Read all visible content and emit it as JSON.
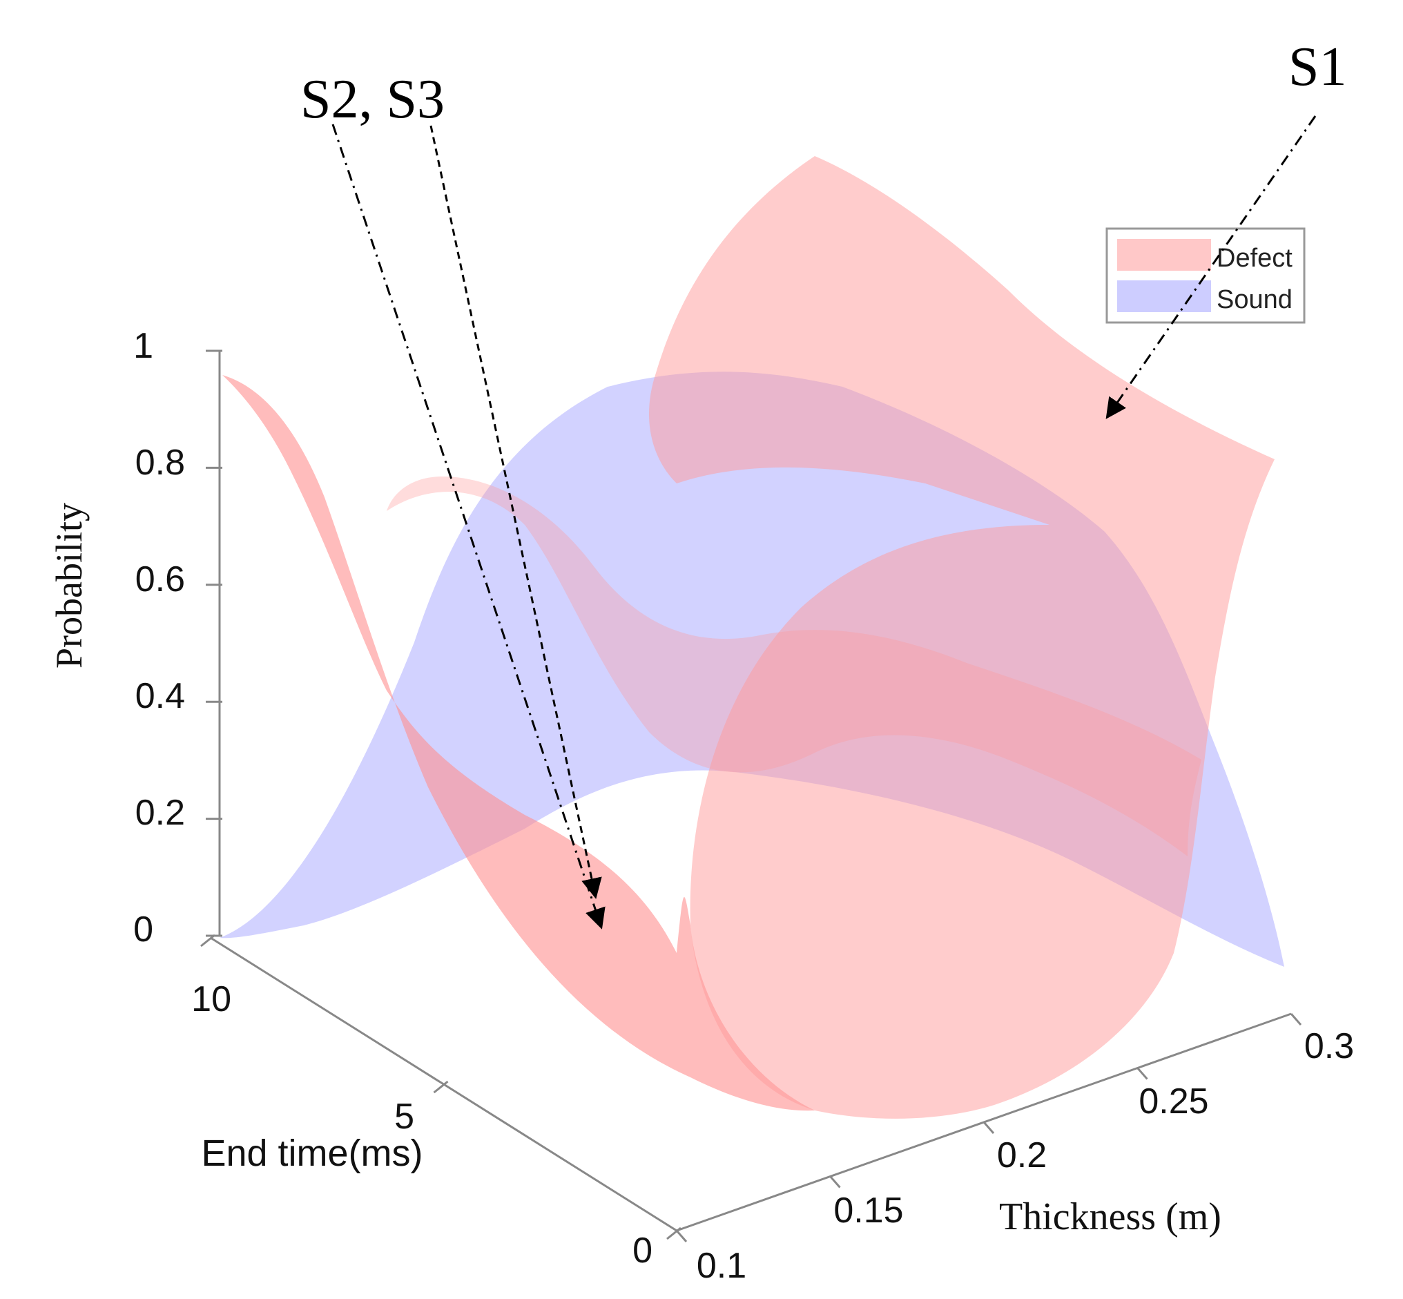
{
  "chart_data": {
    "type": "surface3d",
    "title": "",
    "xlabel": "Thickness (m)",
    "ylabel": "Probability",
    "zlabel": "End time(ms)",
    "x_ticks": [
      "0.1",
      "0.15",
      "0.2",
      "0.25",
      "0.3"
    ],
    "y_ticks": [
      "0",
      "0.2",
      "0.4",
      "0.6",
      "0.8",
      "1"
    ],
    "z_ticks": [
      "0",
      "5",
      "10"
    ],
    "xlim": [
      0.1,
      0.3
    ],
    "ylim": [
      0,
      1
    ],
    "zlim": [
      0,
      10
    ],
    "series": [
      {
        "name": "Defect",
        "color": "#ff9a9a"
      },
      {
        "name": "Sound",
        "color": "#9b9bff"
      }
    ],
    "legend_position": "top-right",
    "annotations": [
      {
        "text": "S1",
        "target": "Defect"
      },
      {
        "text": "S2, S3",
        "target": "Defect"
      }
    ]
  }
}
